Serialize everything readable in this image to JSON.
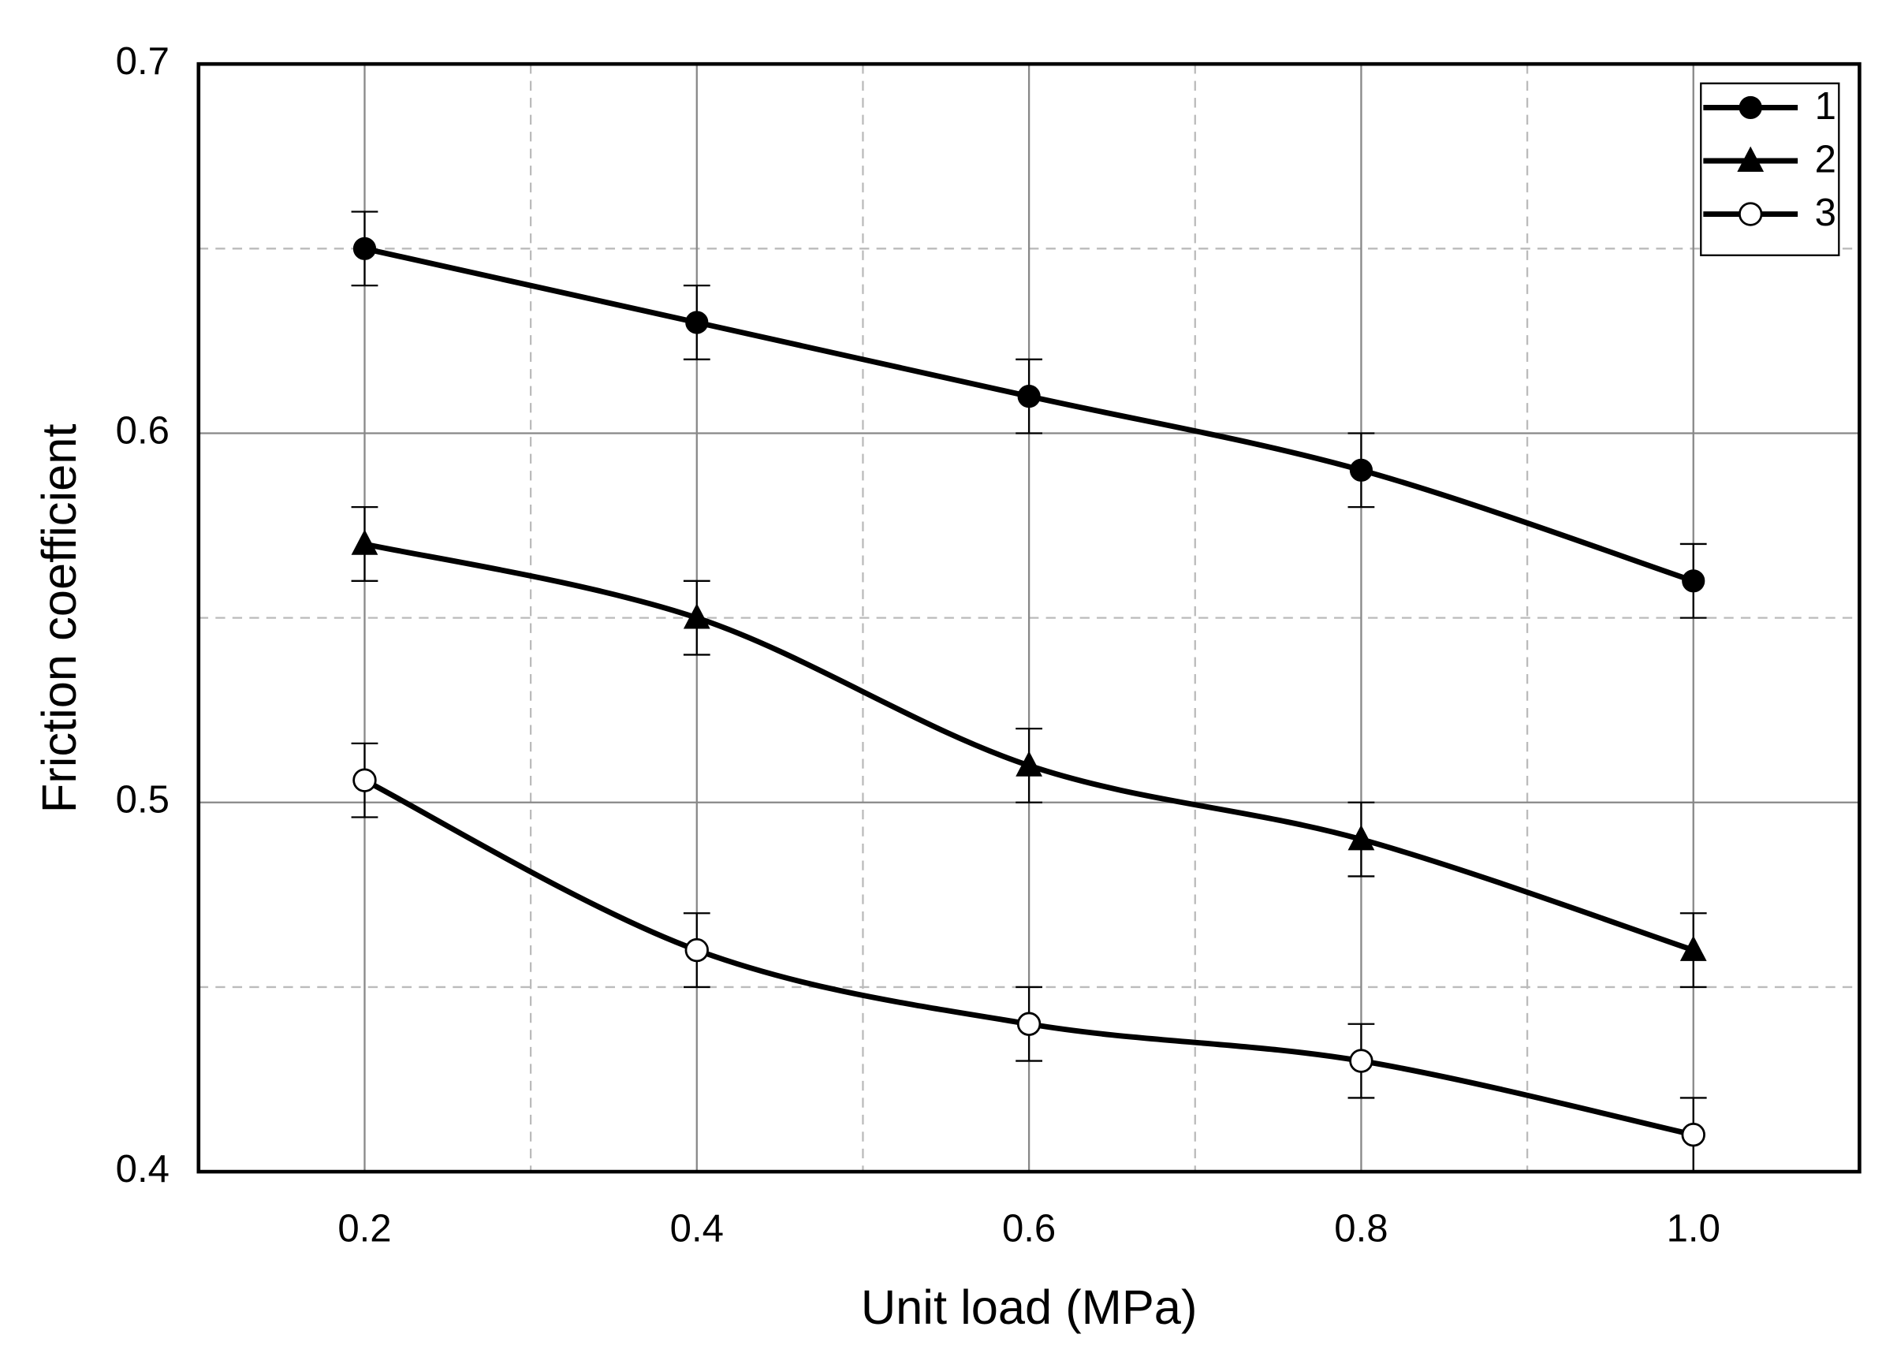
{
  "chart_data": {
    "type": "line",
    "x_label": "Unit load (MPa)",
    "y_label": "Friction coefficient",
    "x": [
      0.2,
      0.4,
      0.6,
      0.8,
      1.0
    ],
    "series": [
      {
        "name": "1",
        "color": "#000000",
        "marker": "filled-circle",
        "values": [
          0.65,
          0.63,
          0.61,
          0.59,
          0.56
        ],
        "errors": [
          0.01,
          0.01,
          0.01,
          0.01,
          0.01
        ]
      },
      {
        "name": "2",
        "color": "#000000",
        "marker": "triangle",
        "values": [
          0.57,
          0.55,
          0.51,
          0.49,
          0.46
        ],
        "errors": [
          0.01,
          0.01,
          0.01,
          0.01,
          0.01
        ]
      },
      {
        "name": "3",
        "color": "#000000",
        "marker": "open-circle",
        "values": [
          0.506,
          0.46,
          0.44,
          0.43,
          0.41
        ],
        "errors": [
          0.01,
          0.01,
          0.01,
          0.01,
          0.01
        ]
      }
    ],
    "xlim": [
      0.1,
      1.1
    ],
    "ylim": [
      0.4,
      0.7
    ],
    "xticks": [
      0.2,
      0.4,
      0.6,
      0.8,
      {
        "value": 1,
        "label": "1.0"
      }
    ],
    "yticks": [
      0.4,
      0.5,
      0.6,
      0.7
    ],
    "x_minor_grid": [
      0.3,
      0.5,
      0.7,
      0.9
    ],
    "y_minor_grid": [
      0.45,
      0.55,
      0.65
    ],
    "grid": true,
    "smooth": true,
    "legend": "top-right"
  }
}
